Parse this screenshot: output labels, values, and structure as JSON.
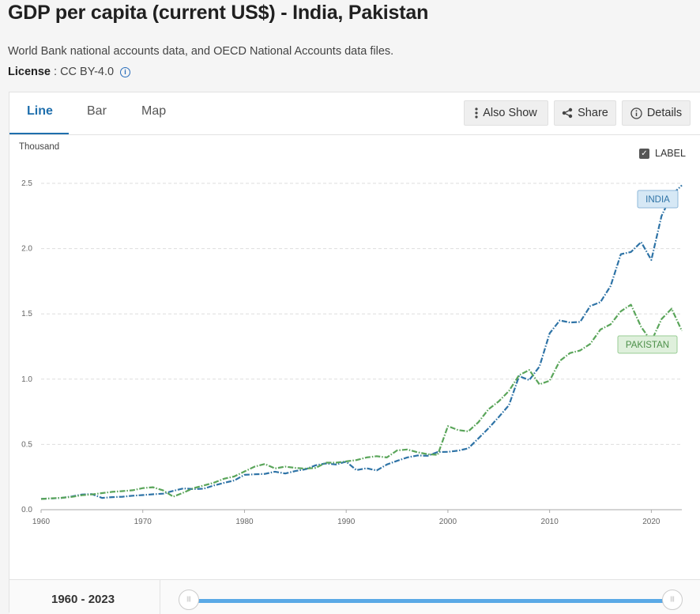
{
  "header": {
    "title": "GDP per capita (current US$) - India, Pakistan",
    "source": "World Bank national accounts data, and OECD National Accounts data files.",
    "license_label": "License",
    "license_value": " : CC BY-4.0"
  },
  "tabs": [
    {
      "label": "Line"
    },
    {
      "label": "Bar"
    },
    {
      "label": "Map"
    }
  ],
  "buttons": {
    "also_show": "Also Show",
    "share": "Share",
    "details": "Details"
  },
  "chart_controls": {
    "unit": "Thousand",
    "label_toggle": "LABEL"
  },
  "footer": {
    "range": "1960 - 2023"
  },
  "colors": {
    "india": "#2e73a6",
    "pakistan": "#5aa55a",
    "accent": "#1f6fad"
  },
  "chart_data": {
    "type": "line",
    "title": "GDP per capita (current US$) - India, Pakistan",
    "ylabel": "Thousand",
    "xlim": [
      1960,
      2023
    ],
    "ylim": [
      0,
      2.5
    ],
    "x_ticks": [
      1960,
      1970,
      1980,
      1990,
      2000,
      2010,
      2020
    ],
    "y_ticks": [
      "0.0",
      "0.5",
      "1.0",
      "1.5",
      "2.0",
      "2.5"
    ],
    "grid": true,
    "series": [
      {
        "name": "INDIA",
        "x": [
          1960,
          1961,
          1962,
          1963,
          1964,
          1965,
          1966,
          1967,
          1968,
          1969,
          1970,
          1971,
          1972,
          1973,
          1974,
          1975,
          1976,
          1977,
          1978,
          1979,
          1980,
          1981,
          1982,
          1983,
          1984,
          1985,
          1986,
          1987,
          1988,
          1989,
          1990,
          1991,
          1992,
          1993,
          1994,
          1995,
          1996,
          1997,
          1998,
          1999,
          2000,
          2001,
          2002,
          2003,
          2004,
          2005,
          2006,
          2007,
          2008,
          2009,
          2010,
          2011,
          2012,
          2013,
          2014,
          2015,
          2016,
          2017,
          2018,
          2019,
          2020,
          2021,
          2022,
          2023
        ],
        "values": [
          0.083,
          0.086,
          0.09,
          0.101,
          0.116,
          0.119,
          0.09,
          0.096,
          0.099,
          0.107,
          0.112,
          0.118,
          0.123,
          0.144,
          0.163,
          0.158,
          0.161,
          0.186,
          0.206,
          0.224,
          0.267,
          0.271,
          0.274,
          0.291,
          0.277,
          0.296,
          0.31,
          0.34,
          0.354,
          0.346,
          0.368,
          0.303,
          0.317,
          0.301,
          0.346,
          0.374,
          0.4,
          0.415,
          0.413,
          0.442,
          0.443,
          0.452,
          0.47,
          0.546,
          0.624,
          0.71,
          0.801,
          1.023,
          0.993,
          1.096,
          1.351,
          1.45,
          1.434,
          1.438,
          1.56,
          1.59,
          1.714,
          1.957,
          1.974,
          2.05,
          1.913,
          2.25,
          2.411,
          2.485
        ]
      },
      {
        "name": "PAKISTAN",
        "x": [
          1960,
          1961,
          1962,
          1963,
          1964,
          1965,
          1966,
          1967,
          1968,
          1969,
          1970,
          1971,
          1972,
          1973,
          1974,
          1975,
          1976,
          1977,
          1978,
          1979,
          1980,
          1981,
          1982,
          1983,
          1984,
          1985,
          1986,
          1987,
          1988,
          1989,
          1990,
          1991,
          1992,
          1993,
          1994,
          1995,
          1996,
          1997,
          1998,
          1999,
          2000,
          2001,
          2002,
          2003,
          2004,
          2005,
          2006,
          2007,
          2008,
          2009,
          2010,
          2011,
          2012,
          2013,
          2014,
          2015,
          2016,
          2017,
          2018,
          2019,
          2020,
          2021,
          2022,
          2023
        ],
        "values": [
          0.082,
          0.087,
          0.091,
          0.098,
          0.111,
          0.117,
          0.127,
          0.137,
          0.142,
          0.149,
          0.165,
          0.172,
          0.148,
          0.1,
          0.131,
          0.165,
          0.185,
          0.207,
          0.237,
          0.255,
          0.293,
          0.33,
          0.35,
          0.316,
          0.33,
          0.32,
          0.315,
          0.32,
          0.36,
          0.36,
          0.37,
          0.38,
          0.4,
          0.41,
          0.4,
          0.454,
          0.461,
          0.44,
          0.425,
          0.42,
          0.64,
          0.61,
          0.6,
          0.67,
          0.77,
          0.83,
          0.91,
          1.03,
          1.07,
          0.96,
          0.988,
          1.14,
          1.2,
          1.22,
          1.27,
          1.38,
          1.42,
          1.52,
          1.57,
          1.4,
          1.29,
          1.46,
          1.54,
          1.37
        ]
      }
    ],
    "series_labels": [
      {
        "series": "INDIA",
        "text": "INDIA"
      },
      {
        "series": "PAKISTAN",
        "text": "PAKISTAN"
      }
    ]
  }
}
